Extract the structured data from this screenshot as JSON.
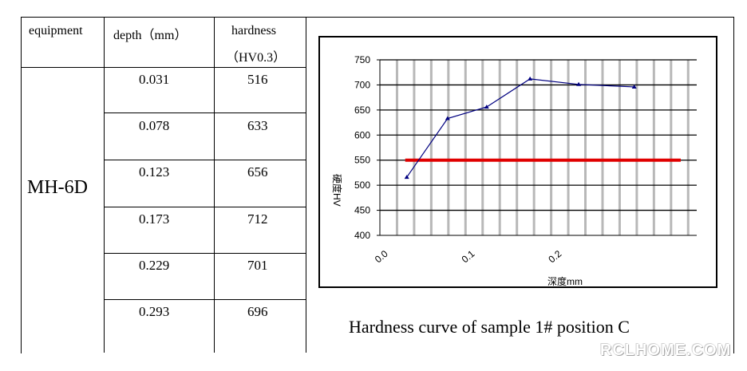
{
  "table": {
    "headers": {
      "equipment": "equipment",
      "depth": "depth（mm）",
      "hardness_line1": "hardness",
      "hardness_line2": "（HV0.3）"
    },
    "equipment_value": "MH-6D",
    "rows": [
      {
        "depth": "0.031",
        "hardness": "516"
      },
      {
        "depth": "0.078",
        "hardness": "633"
      },
      {
        "depth": "0.123",
        "hardness": "656"
      },
      {
        "depth": "0.173",
        "hardness": "712"
      },
      {
        "depth": "0.229",
        "hardness": "701"
      },
      {
        "depth": "0.293",
        "hardness": "696"
      }
    ]
  },
  "chart_caption": "Hardness curve of sample 1# position C",
  "watermark": "RCLHOME.COM",
  "chart_data": {
    "type": "line",
    "xlabel": "深度mm",
    "ylabel": "硬度HV",
    "xlim": [
      0.0,
      0.365
    ],
    "ylim": [
      400,
      750
    ],
    "x_ticks": [
      "0.0",
      "0.1",
      "0.2"
    ],
    "y_ticks": [
      "400",
      "450",
      "500",
      "550",
      "600",
      "650",
      "700",
      "750"
    ],
    "vertical_grid_count": 18,
    "series": [
      {
        "color": "#000080",
        "marker": "triangle",
        "x": [
          0.031,
          0.078,
          0.123,
          0.173,
          0.229,
          0.293
        ],
        "y": [
          516,
          633,
          656,
          712,
          701,
          696
        ]
      }
    ],
    "reference_line": {
      "y": 550,
      "x_start": 0.031,
      "x_end": 0.365,
      "color": "#e00000"
    }
  }
}
